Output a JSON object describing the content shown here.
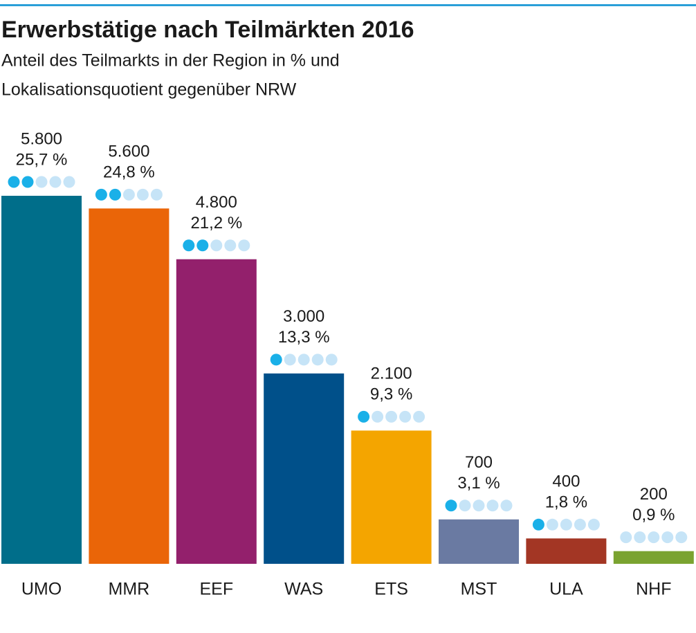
{
  "chart_data": {
    "type": "bar",
    "title": "Erwerbstätige nach Teilmärkten 2016",
    "subtitle": [
      "Anteil des Teilmarkts in der Region in % und",
      "Lokalisationsquotient gegenüber NRW"
    ],
    "categories": [
      "UMO",
      "MMR",
      "EEF",
      "WAS",
      "ETS",
      "MST",
      "ULA",
      "NHF"
    ],
    "values": [
      5800,
      5600,
      4800,
      3000,
      2100,
      700,
      400,
      200
    ],
    "value_labels": [
      "5.800",
      "5.600",
      "4.800",
      "3.000",
      "2.100",
      "700",
      "400",
      "200"
    ],
    "shares": [
      25.7,
      24.8,
      21.2,
      13.3,
      9.3,
      3.1,
      1.8,
      0.9
    ],
    "share_labels": [
      "25,7 %",
      "24,8 %",
      "21,2 %",
      "13,3 %",
      "9,3 %",
      "3,1 %",
      "1,8 %",
      "0,9 %"
    ],
    "quotient_dots": [
      2,
      2,
      2,
      1,
      1,
      1,
      1,
      0
    ],
    "quotient_dots_total": 5,
    "colors": [
      "#006e8a",
      "#ea6508",
      "#93206c",
      "#00508a",
      "#f4a500",
      "#6a7aa2",
      "#a33624",
      "#7aa330"
    ],
    "dot_color": "#1ab0e8",
    "dot_empty_color": "#c6e4f7"
  }
}
